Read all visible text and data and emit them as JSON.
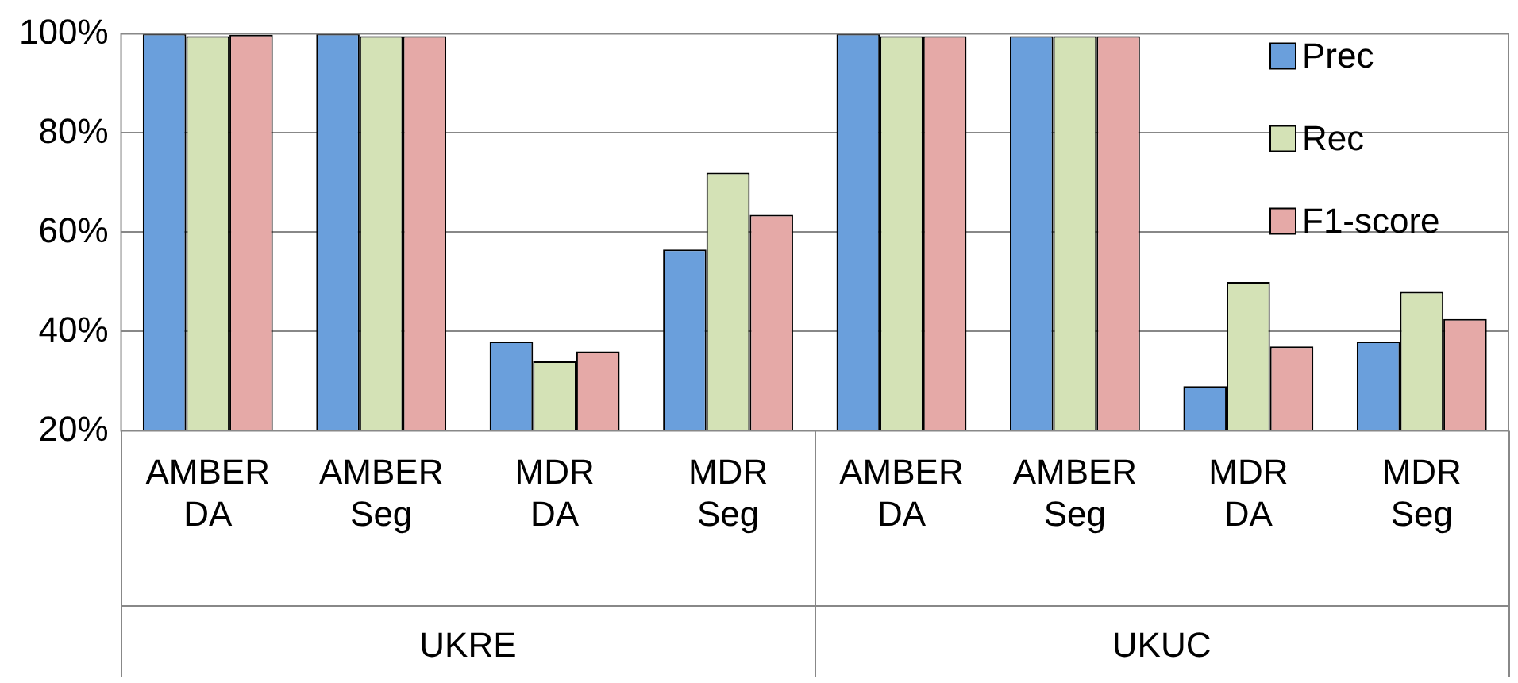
{
  "chart_data": {
    "type": "bar",
    "categories": [
      "AMBER DA",
      "AMBER Seg",
      "MDR DA",
      "MDR Seg",
      "AMBER DA",
      "AMBER Seg",
      "MDR DA",
      "MDR Seg"
    ],
    "annotations": [
      "UKRE",
      "UKUC"
    ],
    "series": [
      {
        "name": "Prec",
        "color": "#6a9fdc",
        "values": [
          100,
          100,
          38,
          56.5,
          100,
          99.5,
          29,
          38
        ]
      },
      {
        "name": "Rec",
        "color": "#d4e2b6",
        "values": [
          99.5,
          99.5,
          34,
          72,
          99.5,
          99.5,
          50,
          48
        ]
      },
      {
        "name": "F1-score",
        "color": "#e5a9a7",
        "values": [
          99.8,
          99.5,
          36,
          63.5,
          99.5,
          99.5,
          37,
          42.5
        ]
      }
    ],
    "ylim": [
      20,
      100
    ],
    "yticks": [
      {
        "value": 20,
        "label": "20%"
      },
      {
        "value": 40,
        "label": "40%"
      },
      {
        "value": 60,
        "label": "60%"
      },
      {
        "value": 80,
        "label": "80%"
      },
      {
        "value": 100,
        "label": "100%"
      }
    ],
    "grid": "y",
    "legend": "top right"
  }
}
